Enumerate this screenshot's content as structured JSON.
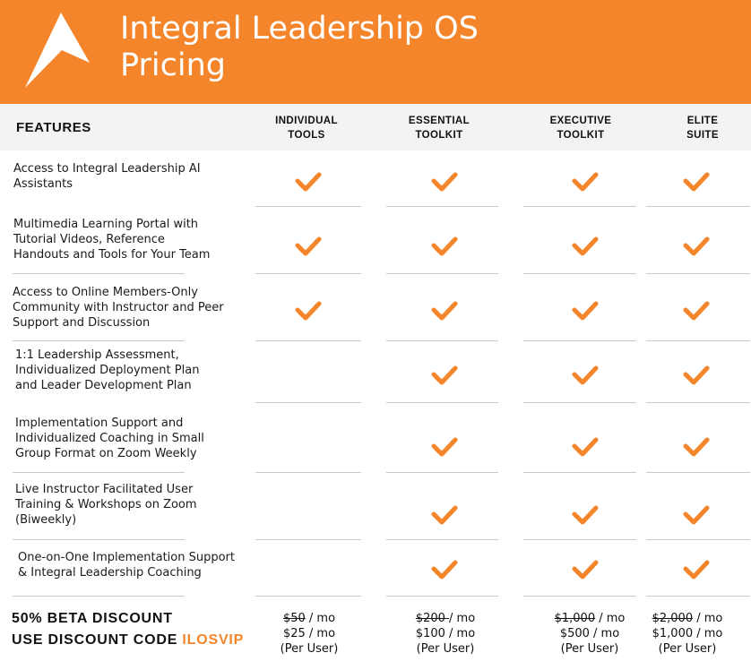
{
  "header": {
    "title_line1": "Integral Leadership OS",
    "title_line2": "Pricing",
    "background_color": "#f5852a",
    "logo_icon": "arrow-up-logo"
  },
  "table": {
    "features_label": "FEATURES",
    "columns": [
      {
        "line1": "INDIVIDUAL",
        "line2": "TOOLS"
      },
      {
        "line1": "ESSENTIAL",
        "line2": "TOOLKIT"
      },
      {
        "line1": "EXECUTIVE",
        "line2": "TOOLKIT"
      },
      {
        "line1": "ELITE",
        "line2": "SUITE"
      }
    ],
    "check_icon": "checkmark-icon",
    "check_color": "#f5852a",
    "rows": [
      {
        "feature": "Access to Integral Leadership AI\nAssistants",
        "included": [
          true,
          true,
          true,
          true
        ]
      },
      {
        "feature": "Multimedia Learning Portal with\nTutorial Videos, Reference\nHandouts and Tools for Your Team",
        "included": [
          true,
          true,
          true,
          true
        ]
      },
      {
        "feature": "Access to Online Members-Only\nCommunity with Instructor and Peer\nSupport and Discussion",
        "included": [
          true,
          true,
          true,
          true
        ]
      },
      {
        "feature": "1:1 Leadership Assessment,\nIndividualized Deployment Plan\nand Leader Development Plan",
        "included": [
          false,
          true,
          true,
          true
        ]
      },
      {
        "feature": "Implementation Support and\nIndividualized Coaching in Small\nGroup Format on Zoom Weekly",
        "included": [
          false,
          true,
          true,
          true
        ]
      },
      {
        "feature": "Live Instructor Facilitated User\nTraining & Workshops on Zoom\n(Biweekly)",
        "included": [
          false,
          true,
          true,
          true
        ]
      },
      {
        "feature": "One-on-One Implementation Support\n& Integral Leadership Coaching",
        "included": [
          false,
          true,
          true,
          true
        ]
      }
    ]
  },
  "promo": {
    "line1": "50% BETA DISCOUNT",
    "line2_prefix": "USE DISCOUNT CODE ",
    "code": "ILOSVIP"
  },
  "prices": [
    {
      "old": "$50",
      "old_suffix": " / mo",
      "new": "$25 / mo",
      "note": "(Per User)"
    },
    {
      "old": "$200 ",
      "old_suffix": "/ mo",
      "new": "$100 / mo",
      "note": "(Per User)"
    },
    {
      "old": "$1,000",
      "old_suffix": " / mo",
      "new": "$500 / mo",
      "note": "(Per User)"
    },
    {
      "old": "$2,000",
      "old_suffix": " / mo",
      "new": "$1,000 / mo",
      "note": "(Per User)"
    }
  ]
}
